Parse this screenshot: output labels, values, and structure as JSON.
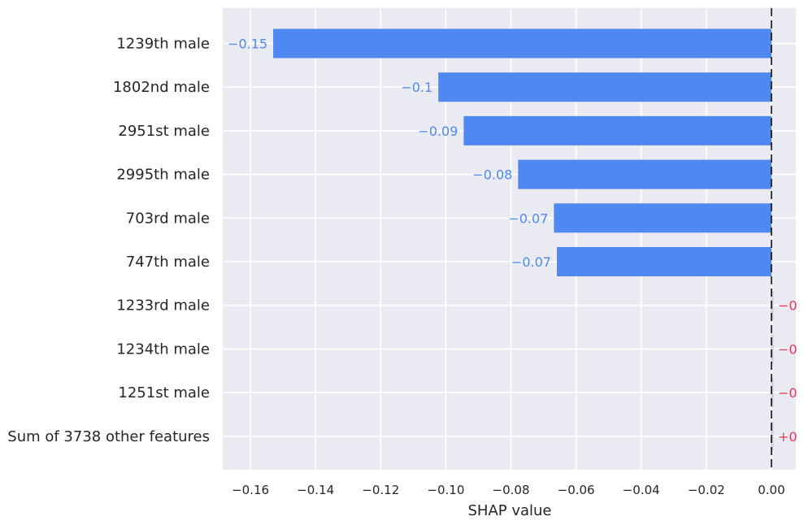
{
  "chart_data": {
    "type": "bar",
    "orientation": "horizontal",
    "title": "",
    "xlabel": "SHAP value",
    "ylabel": "",
    "xlim": [
      -0.1685,
      0.0075
    ],
    "grid": true,
    "xticks": [
      -0.16,
      -0.14,
      -0.12,
      -0.1,
      -0.08,
      -0.06,
      -0.04,
      -0.02,
      0.0
    ],
    "xtick_labels": [
      "−0.16",
      "−0.14",
      "−0.12",
      "−0.10",
      "−0.08",
      "−0.06",
      "−0.04",
      "−0.02",
      "0.00"
    ],
    "categories": [
      "1239th male",
      "1802nd male",
      "2951st male",
      "2995th male",
      "703rd male",
      "747th male",
      "1233rd male",
      "1234th male",
      "1251st male",
      "Sum of 3738 other features"
    ],
    "values": [
      -0.153,
      -0.1023,
      -0.0945,
      -0.0778,
      -0.0668,
      -0.0659,
      -0.0003,
      -0.0003,
      -0.0003,
      0.0003
    ],
    "data_labels": [
      "−0.15",
      "−0.1",
      "−0.09",
      "−0.08",
      "−0.07",
      "−0.07",
      "−0",
      "−0",
      "−0",
      "+0"
    ],
    "colors": {
      "negative": "#4e88f0",
      "negative_label": "#4e88f0",
      "positive_label": "#e8375a",
      "background": "#eaeaf2",
      "grid": "#ffffff",
      "zero_line": "#000000",
      "small_bar": "#cfcfd8"
    }
  }
}
